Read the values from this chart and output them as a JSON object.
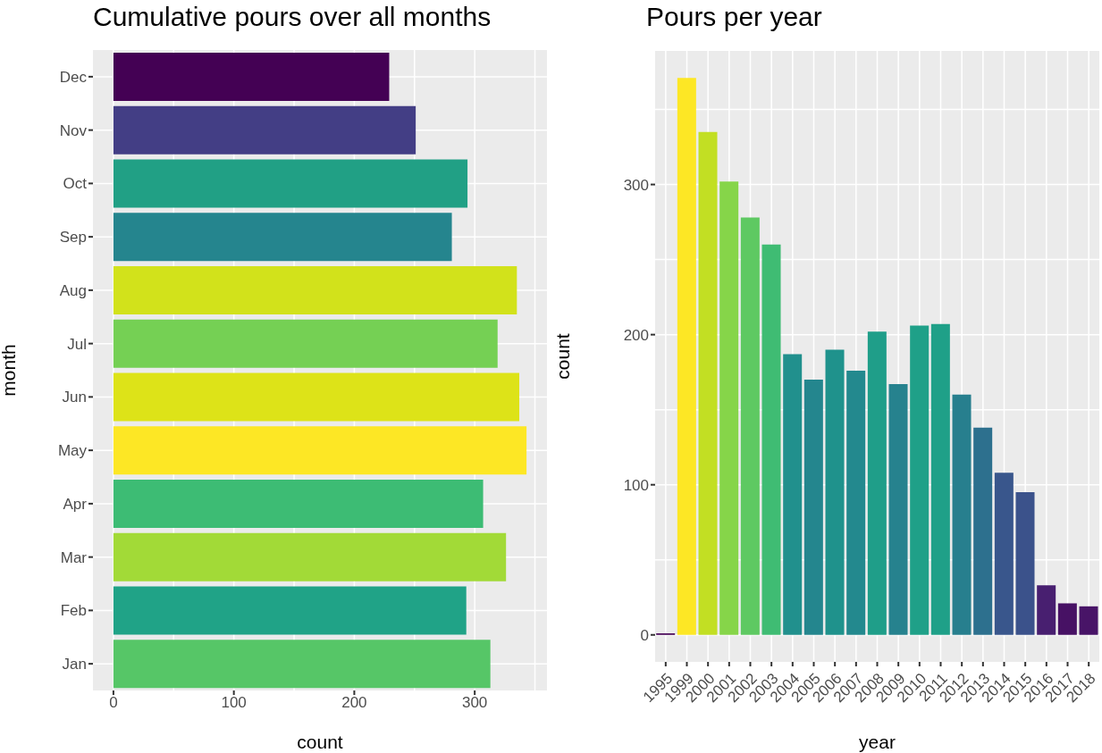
{
  "chart_data": [
    {
      "type": "bar",
      "title": "Cumulative pours over all months",
      "xlabel": "count",
      "ylabel": "month",
      "orientation": "horizontal",
      "categories": [
        "Dec",
        "Nov",
        "Oct",
        "Sep",
        "Aug",
        "Jul",
        "Jun",
        "May",
        "Apr",
        "Mar",
        "Feb",
        "Jan"
      ],
      "values": [
        229,
        251,
        294,
        281,
        335,
        319,
        337,
        343,
        307,
        326,
        293,
        313
      ],
      "colors": [
        "#440154",
        "#433e85",
        "#21a085",
        "#25858e",
        "#d2e21b",
        "#75d054",
        "#dde318",
        "#fde725",
        "#3dbc74",
        "#a2da37",
        "#20a387",
        "#56c667"
      ],
      "xlim": [
        -17,
        360
      ],
      "xticks": [
        0,
        100,
        200,
        300
      ],
      "grid": true
    },
    {
      "type": "bar",
      "title": "Pours per year",
      "xlabel": "year",
      "ylabel": "count",
      "categories": [
        "1995",
        "1999",
        "2000",
        "2001",
        "2002",
        "2003",
        "2004",
        "2005",
        "2006",
        "2007",
        "2008",
        "2009",
        "2010",
        "2011",
        "2012",
        "2013",
        "2014",
        "2015",
        "2016",
        "2017",
        "2018"
      ],
      "values": [
        1,
        371,
        335,
        302,
        278,
        260,
        187,
        170,
        190,
        176,
        202,
        167,
        206,
        207,
        160,
        138,
        108,
        95,
        33,
        21,
        19
      ],
      "colors": [
        "#440154",
        "#fde725",
        "#c2df23",
        "#86d549",
        "#5ec962",
        "#3fbc73",
        "#21908d",
        "#24868e",
        "#1f928c",
        "#23898e",
        "#1f9e89",
        "#26828e",
        "#1fa088",
        "#1fa088",
        "#277f8e",
        "#2d708e",
        "#39568c",
        "#3b528b",
        "#481f70",
        "#471164",
        "#481467"
      ],
      "ylim": [
        -18,
        389
      ],
      "yticks": [
        0,
        100,
        200,
        300
      ],
      "grid": true
    }
  ]
}
